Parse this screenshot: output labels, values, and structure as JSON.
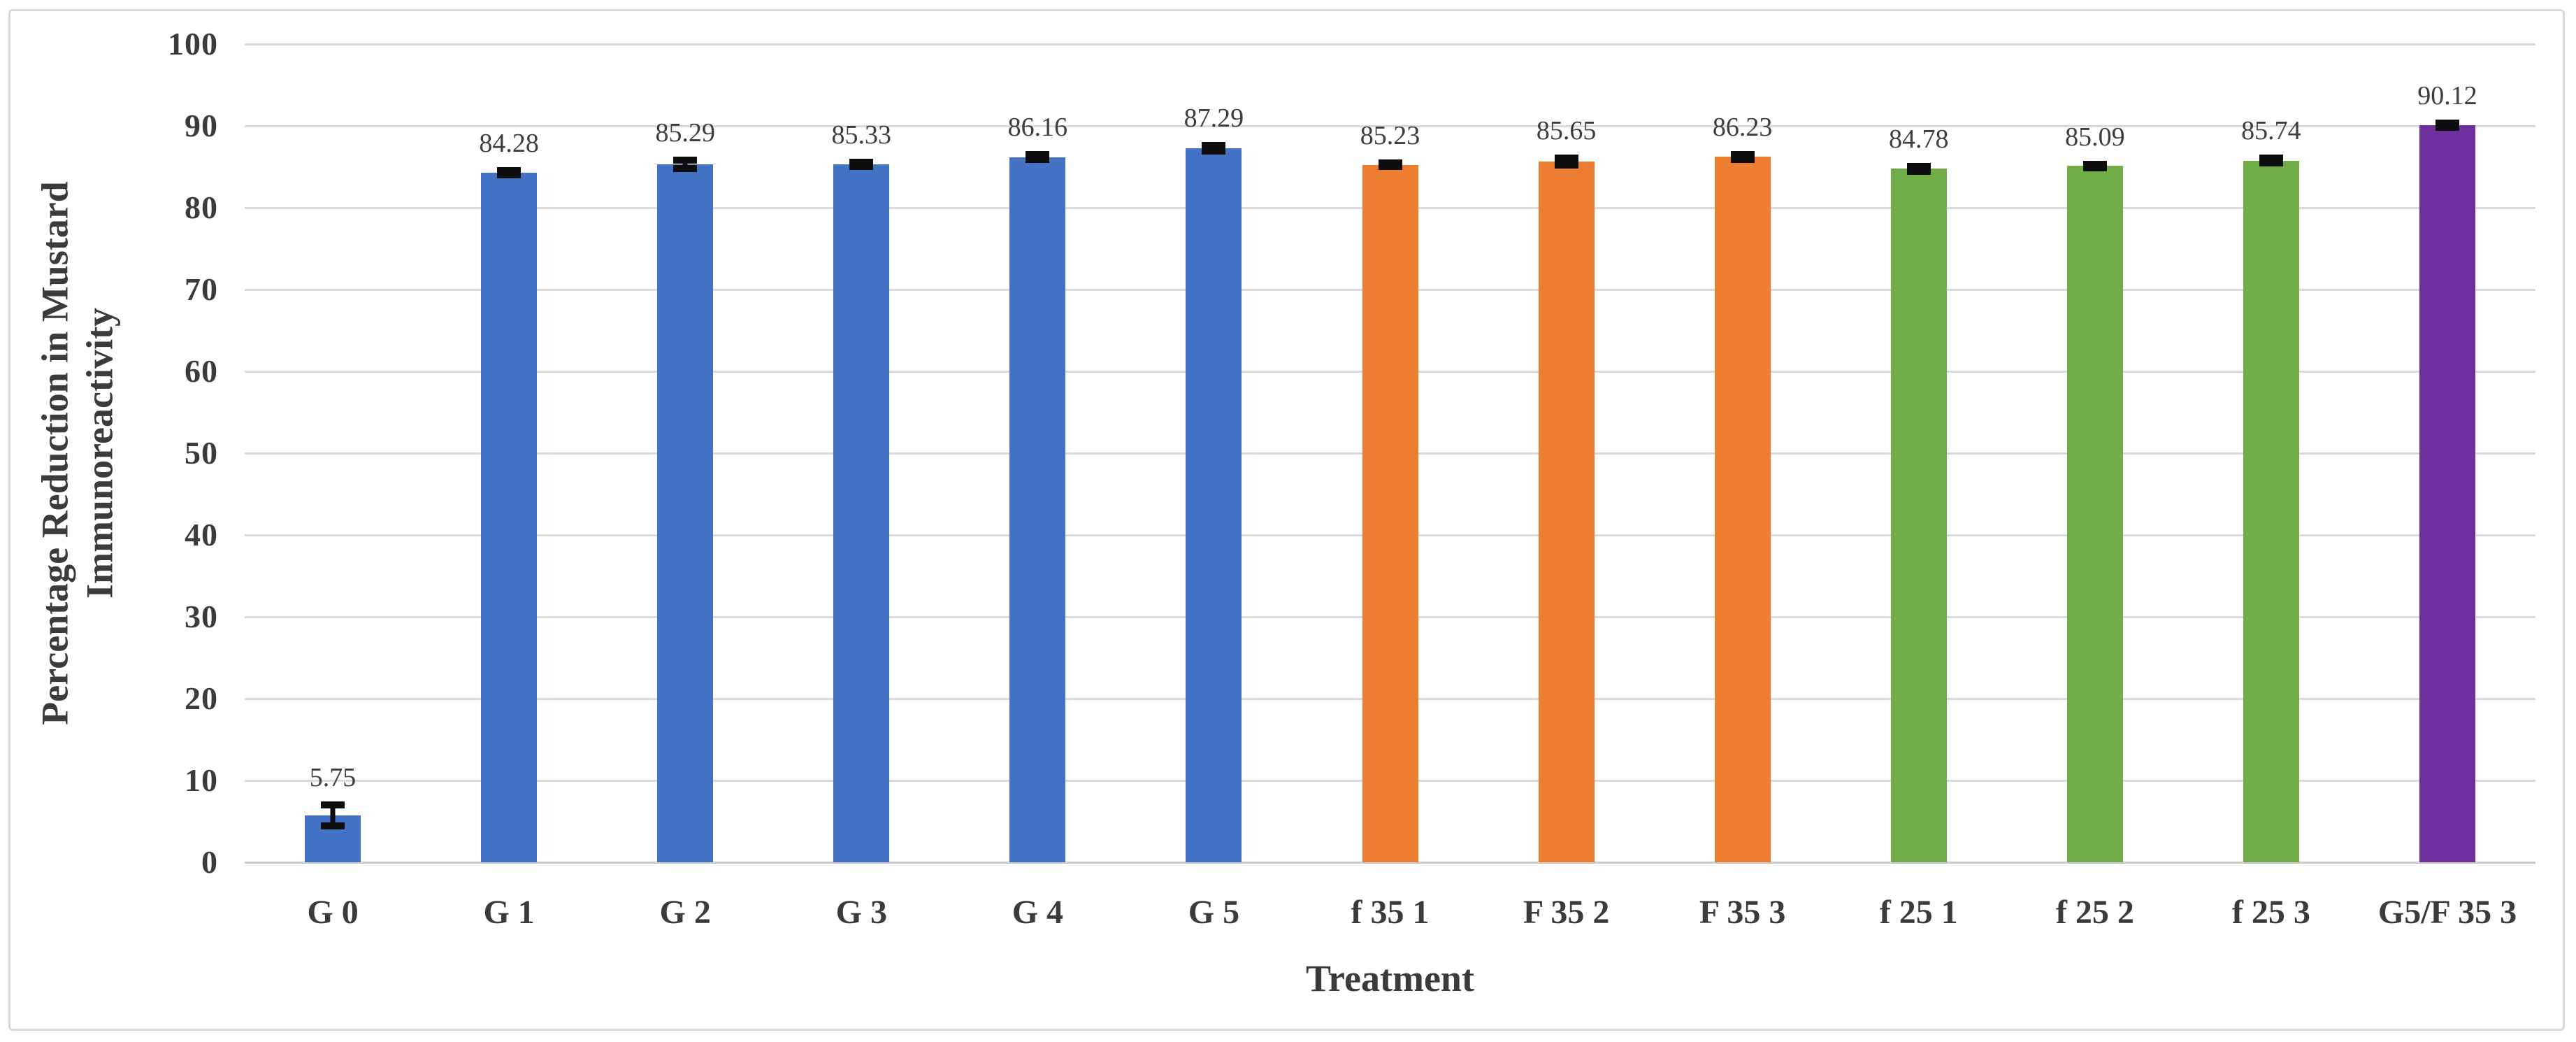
{
  "chart_data": {
    "type": "bar",
    "title": "",
    "xlabel": "Treatment",
    "ylabel": "Percentage Reduction in Mustard Immunoreactivity",
    "ylabel_lines": [
      "Percentage Reduction in Mustard",
      "Immunoreactivity"
    ],
    "categories": [
      "G 0",
      "G 1",
      "G 2",
      "G 3",
      "G 4",
      "G 5",
      "f 35 1",
      "F 35 2",
      "F 35 3",
      "f 25 1",
      "f 25 2",
      "f 25 3",
      "G5/F 35 3"
    ],
    "values": [
      5.75,
      84.28,
      85.29,
      85.33,
      86.16,
      87.29,
      85.23,
      85.65,
      86.23,
      84.78,
      85.09,
      85.74,
      90.12
    ],
    "data_labels": [
      "5.75",
      "84.28",
      "85.29",
      "85.33",
      "86.16",
      "87.29",
      "85.23",
      "85.65",
      "86.23",
      "84.78",
      "85.09",
      "85.74",
      "90.12"
    ],
    "error_bars": [
      1.3,
      0.25,
      0.5,
      0.25,
      0.3,
      0.35,
      0.2,
      0.45,
      0.3,
      0.3,
      0.25,
      0.3,
      0.25
    ],
    "bar_colors": [
      "#4472C4",
      "#4472C4",
      "#4472C4",
      "#4472C4",
      "#4472C4",
      "#4472C4",
      "#ED7D31",
      "#ED7D31",
      "#ED7D31",
      "#70AD47",
      "#70AD47",
      "#70AD47",
      "#7030A0"
    ],
    "series_color_legend": {
      "blue": "#4472C4",
      "orange": "#ED7D31",
      "green": "#70AD47",
      "purple": "#7030A0"
    },
    "error_bar_color": "#0d0d0d",
    "gridline_color": "#dadada",
    "ylim": [
      0,
      100
    ],
    "ytick_step": 10,
    "yticks": [
      0,
      10,
      20,
      30,
      40,
      50,
      60,
      70,
      80,
      90,
      100
    ],
    "ytick_labels": [
      "0",
      "10",
      "20",
      "30",
      "40",
      "50",
      "60",
      "70",
      "80",
      "90",
      "100"
    ],
    "grid": "horizontal",
    "legend": "none",
    "data_labels_shown": true
  }
}
